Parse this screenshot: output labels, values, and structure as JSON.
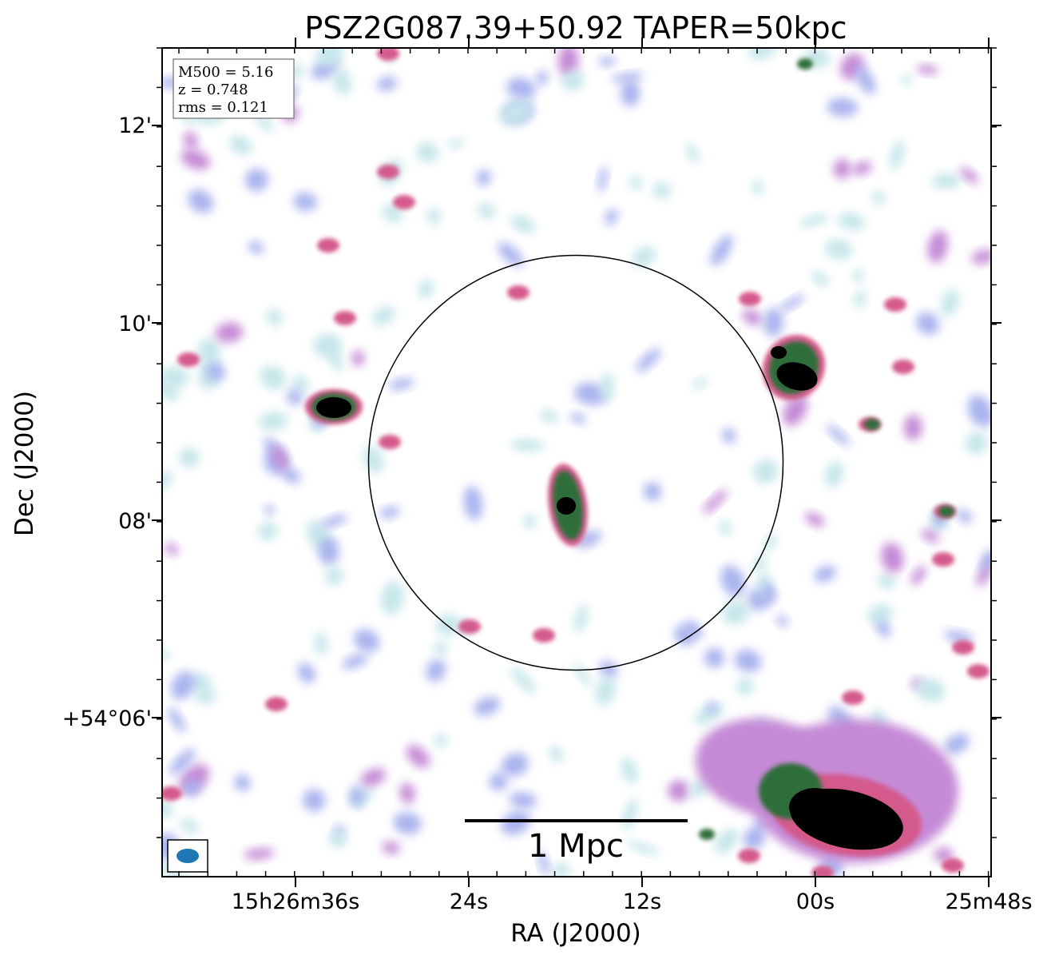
{
  "figure": {
    "title": "PSZ2G087.39+50.92 TAPER=50kpc",
    "xlabel": "RA (J2000)",
    "ylabel": "Dec (J2000)",
    "x_ticks": [
      "15h26m36s",
      "24s",
      "12s",
      "00s",
      "25m48s"
    ],
    "y_ticks": [
      "12'",
      "10'",
      "08'",
      "+54°06'"
    ],
    "info": {
      "line1": "M500 = 5.16",
      "line2": "z = 0.748",
      "line3": "rms = 0.121"
    },
    "scalebar_label": "1 Mpc",
    "colors": {
      "beam": "#1f77b4",
      "colormap": [
        "#ffffff",
        "#c6e6ea",
        "#aab4ee",
        "#c58ad6",
        "#d45a8c",
        "#2f6e3a",
        "#000000"
      ]
    }
  }
}
